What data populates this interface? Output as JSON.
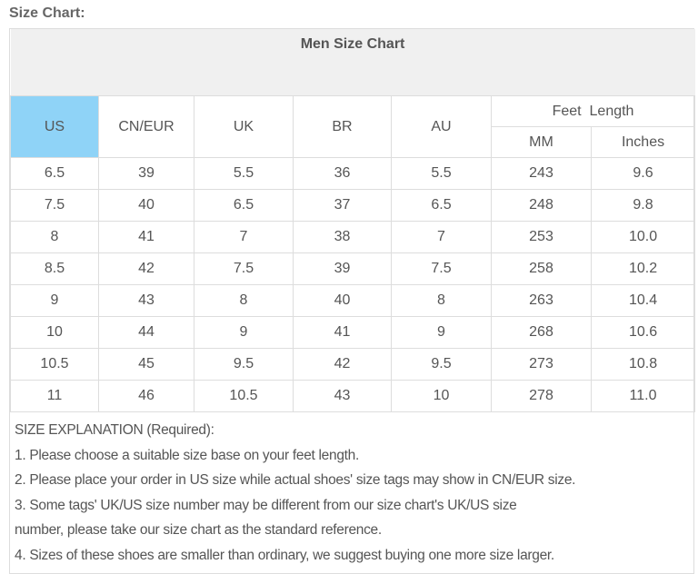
{
  "title": "Size Chart:",
  "table": {
    "caption": "Men Size Chart",
    "headers": [
      "US",
      "CN/EUR",
      "UK",
      "BR",
      "AU"
    ],
    "feet_length": {
      "label": "Feet  Length",
      "sub": [
        "MM",
        "Inches"
      ]
    },
    "highlight_color": "#8fd3f7",
    "rows": [
      [
        "6.5",
        "39",
        "5.5",
        "36",
        "5.5",
        "243",
        "9.6"
      ],
      [
        "7.5",
        "40",
        "6.5",
        "37",
        "6.5",
        "248",
        "9.8"
      ],
      [
        "8",
        "41",
        "7",
        "38",
        "7",
        "253",
        "10.0"
      ],
      [
        "8.5",
        "42",
        "7.5",
        "39",
        "7.5",
        "258",
        "10.2"
      ],
      [
        "9",
        "43",
        "8",
        "40",
        "8",
        "263",
        "10.4"
      ],
      [
        "10",
        "44",
        "9",
        "41",
        "9",
        "268",
        "10.6"
      ],
      [
        "10.5",
        "45",
        "9.5",
        "42",
        "9.5",
        "273",
        "10.8"
      ],
      [
        "11",
        "46",
        "10.5",
        "43",
        "10",
        "278",
        "11.0"
      ]
    ]
  },
  "explanation": [
    "SIZE EXPLANATION (Required):",
    "1. Please choose a suitable size base on your feet length.",
    "2. Please place your order in US size while actual shoes' size tags may show in CN/EUR size.",
    "3. Some tags' UK/US size number may be different from our size chart's UK/US size",
    "number, please take our size chart as the standard reference.",
    "4. Sizes of these shoes are smaller than ordinary, we suggest buying one more size larger."
  ]
}
